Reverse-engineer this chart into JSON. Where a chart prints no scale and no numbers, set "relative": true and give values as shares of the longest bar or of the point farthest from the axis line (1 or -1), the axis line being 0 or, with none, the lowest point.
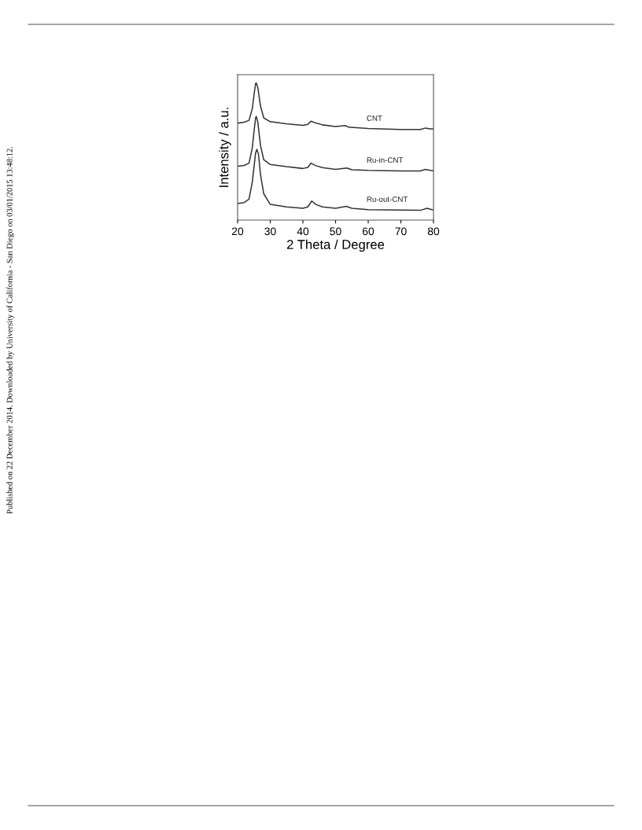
{
  "chart_data": {
    "type": "line",
    "relative": true,
    "xlabel": "2 Theta / Degree",
    "ylabel": "Intensity / a.u.",
    "xlim": [
      20,
      80
    ],
    "xticks": [
      20,
      30,
      40,
      50,
      60,
      70,
      80
    ],
    "grid": false,
    "legend": false,
    "marker": "none",
    "line_style": "solid",
    "annotations": [
      "Published on 22 December 2014. Downloaded by University of California - San Diego on 03/01/2015 13:48:12."
    ],
    "series": [
      {
        "name": "CNT",
        "color": "#333333",
        "x": [
          20,
          22,
          23.5,
          24.5,
          25,
          25.5,
          25.7,
          26.2,
          27,
          28,
          30,
          35,
          40,
          41.5,
          42.5,
          44,
          46,
          50,
          53,
          54,
          60,
          70,
          76,
          77.5,
          79,
          80
        ],
        "values": [
          0.707,
          0.713,
          0.727,
          0.812,
          0.908,
          0.994,
          1.0,
          0.966,
          0.832,
          0.745,
          0.717,
          0.702,
          0.69,
          0.698,
          0.721,
          0.707,
          0.694,
          0.682,
          0.689,
          0.677,
          0.667,
          0.66,
          0.66,
          0.671,
          0.665,
          0.665
        ]
      },
      {
        "name": "Ru-in-CNT",
        "color": "#333333",
        "x": [
          20,
          22,
          23.5,
          24.5,
          25,
          25.5,
          25.7,
          26.2,
          27,
          28,
          30,
          35,
          40,
          41.5,
          42.5,
          44,
          46,
          50,
          53.5,
          55,
          60,
          70,
          76,
          77.5,
          79,
          80
        ],
        "values": [
          0.392,
          0.398,
          0.415,
          0.526,
          0.64,
          0.745,
          0.756,
          0.713,
          0.545,
          0.44,
          0.405,
          0.389,
          0.376,
          0.384,
          0.415,
          0.396,
          0.382,
          0.369,
          0.38,
          0.367,
          0.362,
          0.358,
          0.358,
          0.369,
          0.362,
          0.36
        ]
      },
      {
        "name": "Ru-out-CNT",
        "color": "#333333",
        "x": [
          20,
          22,
          23.5,
          24.5,
          25,
          25.5,
          25.9,
          26.4,
          27,
          28,
          30,
          35,
          40,
          41.5,
          42.7,
          44,
          46,
          50,
          53.3,
          55,
          60,
          70,
          76,
          78,
          79.5,
          80
        ],
        "values": [
          0.12,
          0.128,
          0.152,
          0.277,
          0.382,
          0.488,
          0.516,
          0.478,
          0.335,
          0.192,
          0.114,
          0.096,
          0.086,
          0.096,
          0.139,
          0.114,
          0.096,
          0.086,
          0.1,
          0.086,
          0.076,
          0.073,
          0.071,
          0.086,
          0.076,
          0.074
        ]
      }
    ]
  }
}
